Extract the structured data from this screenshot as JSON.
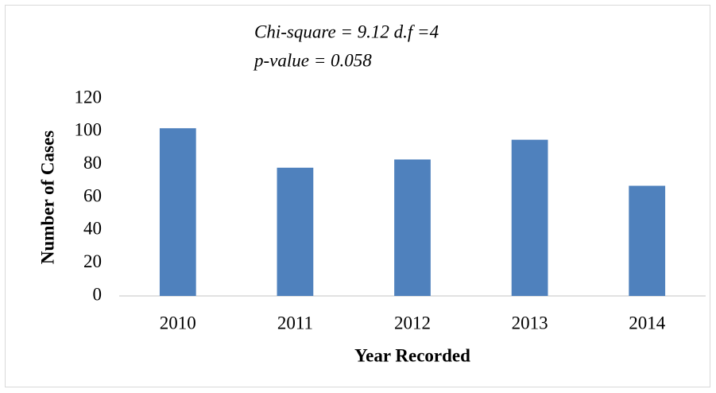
{
  "chart_data": {
    "type": "bar",
    "annotations": [
      "Chi-square = 9.12 d.f =4",
      "p-value = 0.058"
    ],
    "x_label": "Year Recorded",
    "y_label": "Number of Cases",
    "categories": [
      "2010",
      "2011",
      "2012",
      "2013",
      "2014"
    ],
    "values": [
      102,
      78,
      83,
      95,
      67
    ],
    "color": "#4f81bd",
    "ylim": [
      0,
      120
    ],
    "yticks": [
      0,
      20,
      40,
      60,
      80,
      100,
      120
    ],
    "grid": false
  }
}
